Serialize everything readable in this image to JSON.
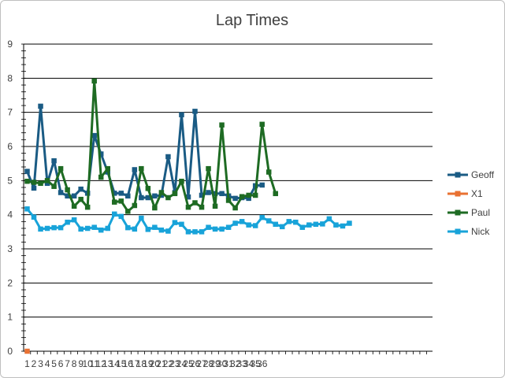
{
  "chart_data": {
    "type": "line",
    "title": "Lap Times",
    "xlabel": "",
    "ylabel": "",
    "ylim": [
      0,
      9
    ],
    "yticks": [
      0,
      1,
      2,
      3,
      4,
      5,
      6,
      7,
      8,
      9
    ],
    "x_tick_labels": [
      "1",
      "2",
      "3",
      "4",
      "5",
      "6",
      "7",
      "8",
      "9",
      "10",
      "11",
      "12",
      "13",
      "14",
      "15",
      "16",
      "17",
      "18",
      "19",
      "20",
      "21",
      "22",
      "23",
      "24",
      "25",
      "26",
      "27",
      "28",
      "29",
      "30",
      "31",
      "32",
      "33",
      "34",
      "35",
      "36"
    ],
    "x_count": 60,
    "grid": "horizontal",
    "legend_position": "right",
    "series": [
      {
        "name": "Geoff",
        "color": "#1a5b84",
        "values": [
          5.27,
          4.78,
          7.18,
          4.92,
          5.58,
          4.65,
          4.55,
          4.55,
          4.75,
          4.63,
          6.32,
          5.78,
          5.25,
          4.63,
          4.63,
          4.55,
          5.32,
          4.5,
          4.5,
          4.55,
          4.57,
          5.7,
          4.65,
          6.93,
          4.52,
          7.03,
          4.57,
          4.65,
          4.62,
          4.62,
          4.55,
          4.48,
          4.5,
          4.48,
          4.85,
          4.87
        ]
      },
      {
        "name": "X1",
        "color": "#e97132",
        "values": [
          0
        ]
      },
      {
        "name": "Paul",
        "color": "#1e6b23",
        "values": [
          4.98,
          4.95,
          4.92,
          5.0,
          4.83,
          5.35,
          4.73,
          4.25,
          4.45,
          4.22,
          7.92,
          5.1,
          5.35,
          4.37,
          4.4,
          4.1,
          4.27,
          5.35,
          4.77,
          4.2,
          4.65,
          4.5,
          4.62,
          4.98,
          4.22,
          4.35,
          4.22,
          5.35,
          4.25,
          6.63,
          4.42,
          4.2,
          4.53,
          4.57,
          4.57,
          6.65,
          5.25,
          4.62
        ]
      },
      {
        "name": "Nick",
        "color": "#18a3d9",
        "values": [
          4.17,
          3.93,
          3.58,
          3.6,
          3.62,
          3.62,
          3.78,
          3.85,
          3.58,
          3.6,
          3.63,
          3.55,
          3.6,
          4.02,
          3.95,
          3.62,
          3.58,
          3.9,
          3.57,
          3.63,
          3.55,
          3.52,
          3.77,
          3.72,
          3.5,
          3.5,
          3.5,
          3.63,
          3.58,
          3.58,
          3.63,
          3.75,
          3.8,
          3.7,
          3.68,
          3.92,
          3.82,
          3.72,
          3.65,
          3.8,
          3.78,
          3.63,
          3.7,
          3.72,
          3.73,
          3.88,
          3.7,
          3.67,
          3.75
        ]
      }
    ]
  }
}
